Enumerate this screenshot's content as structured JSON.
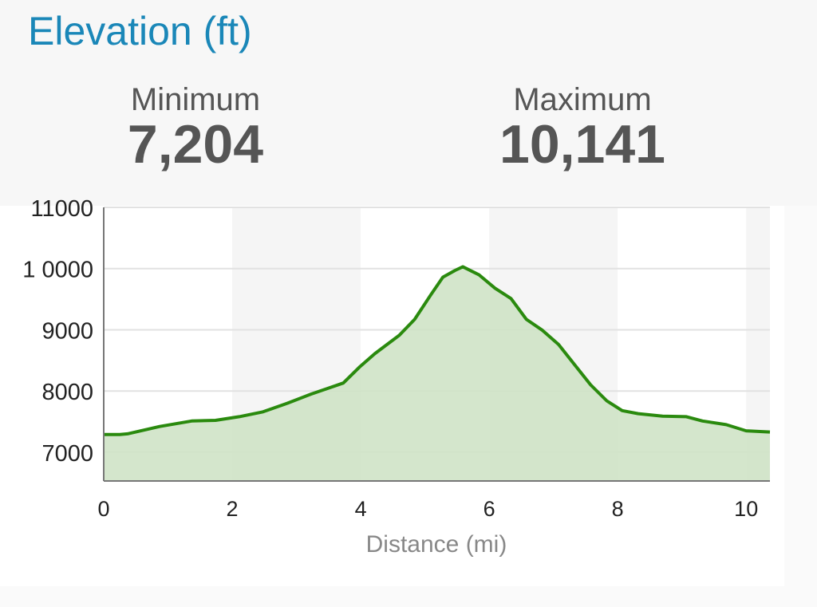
{
  "header": {
    "title": "Elevation (ft)",
    "minimum_label": "Minimum",
    "minimum_value": "7,204",
    "maximum_label": "Maximum",
    "maximum_value": "10,141"
  },
  "colors": {
    "title": "#1a87b8",
    "line": "#2a8a0e",
    "fill": "#cfe3c6"
  },
  "chart_data": {
    "type": "area",
    "xlabel": "Distance (mi)",
    "ylabel": "",
    "xlim": [
      0,
      10.37
    ],
    "ylim": [
      6530,
      11000
    ],
    "x_ticks": [
      0,
      2,
      4,
      6,
      8,
      10
    ],
    "y_ticks": [
      7000,
      8000,
      9000,
      10000,
      11000
    ],
    "y_tick_labels": [
      "7000",
      "8000",
      "9000",
      "1 0000",
      "11000"
    ],
    "grid": true,
    "x": [
      0,
      0.25,
      0.37,
      0.87,
      1.37,
      1.74,
      2.11,
      2.48,
      2.86,
      3.23,
      3.48,
      3.73,
      3.98,
      4.22,
      4.6,
      4.84,
      5.09,
      5.28,
      5.47,
      5.59,
      5.84,
      6.09,
      6.34,
      6.58,
      6.83,
      7.08,
      7.33,
      7.58,
      7.83,
      8.07,
      8.32,
      8.7,
      9.07,
      9.32,
      9.69,
      10.0,
      10.37
    ],
    "y": [
      7290,
      7290,
      7300,
      7420,
      7510,
      7520,
      7580,
      7660,
      7800,
      7950,
      8040,
      8130,
      8390,
      8610,
      8910,
      9170,
      9570,
      9860,
      9970,
      10030,
      9900,
      9680,
      9510,
      9170,
      8990,
      8760,
      8430,
      8100,
      7840,
      7680,
      7630,
      7590,
      7580,
      7510,
      7450,
      7350,
      7330
    ]
  }
}
